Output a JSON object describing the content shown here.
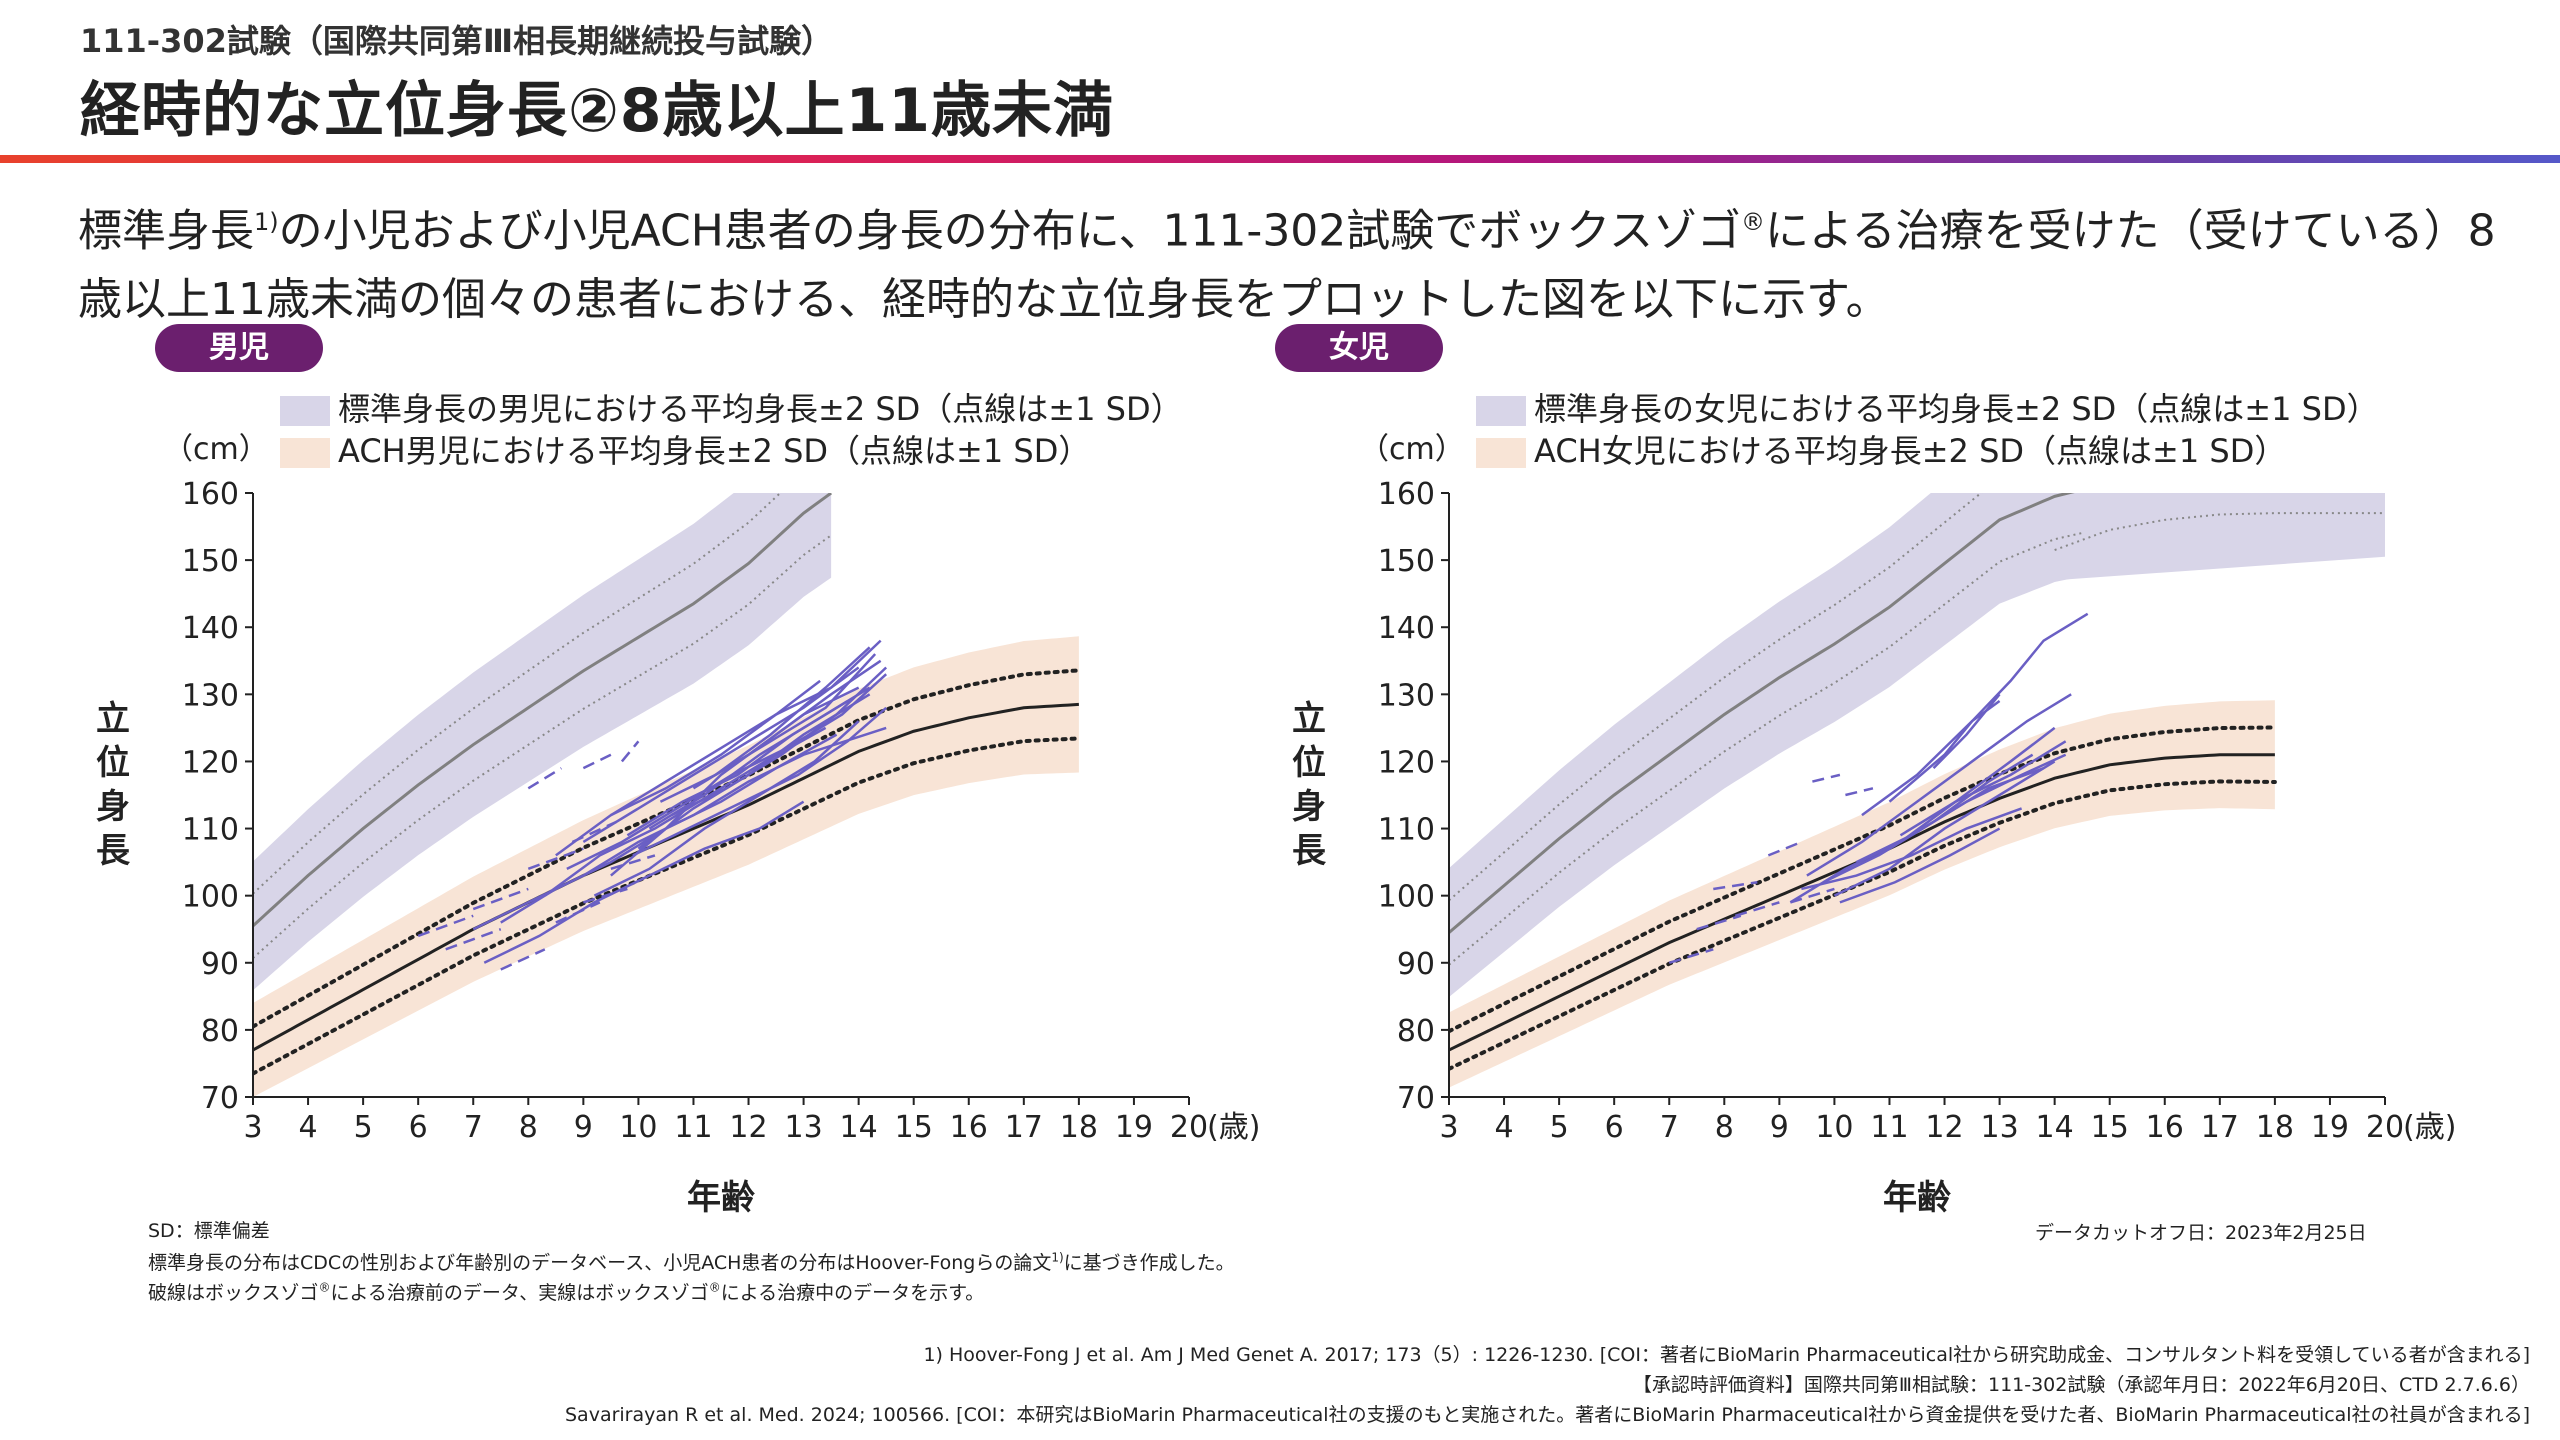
{
  "header": {
    "subtitle": "111-302試験（国際共同第Ⅲ相長期継続投与試験）",
    "title": "経時的な立位身長②8歳以上11歳未満"
  },
  "lead": {
    "part1": "標準身長",
    "ref": "1)",
    "part2": "の小児および小児ACH患者の身長の分布に、111-302試験でボックスゾゴ",
    "reg": "®",
    "part3": "による治療を受けた（受けている）8歳以上11歳未満の個々の患者における、経時的な立位身長をプロットした図を以下に示す。"
  },
  "colors": {
    "standard_band": "#d8d5e8",
    "ach_band": "#f8e4d6",
    "patient_line": "#6a5fc4",
    "standard_mean": "#808080",
    "ach_mean": "#222222",
    "badge": "#6b1f6e"
  },
  "charts": [
    {
      "badge": "男児",
      "legend_standard": "標準身長の男児における平均身長±2 SD（点線は±1 SD）",
      "legend_ach": "ACH男児における平均身長±2 SD（点線は±1 SD）"
    },
    {
      "badge": "女児",
      "legend_standard": "標準身長の女児における平均身長±2 SD（点線は±1 SD）",
      "legend_ach": "ACH女児における平均身長±2 SD（点線は±1 SD）"
    }
  ],
  "axes": {
    "y_unit": "（cm）",
    "y_label": "立位身長",
    "x_label": "年齢",
    "x_unit": "(歳)"
  },
  "chart_data": [
    {
      "type": "line",
      "panel": "男児",
      "xlim": [
        3,
        20
      ],
      "ylim": [
        70,
        160
      ],
      "x_ticks": [
        3,
        4,
        5,
        6,
        7,
        8,
        9,
        10,
        11,
        12,
        13,
        14,
        15,
        16,
        17,
        18,
        19,
        20
      ],
      "y_ticks": [
        70,
        80,
        90,
        100,
        110,
        120,
        130,
        140,
        150,
        160
      ],
      "standard_mean": [
        [
          3,
          95.5
        ],
        [
          4,
          103
        ],
        [
          5,
          110
        ],
        [
          6,
          116.5
        ],
        [
          7,
          122.5
        ],
        [
          8,
          128
        ],
        [
          9,
          133.5
        ],
        [
          10,
          138.5
        ],
        [
          11,
          143.5
        ],
        [
          12,
          149.5
        ],
        [
          13,
          157
        ],
        [
          13.5,
          160
        ]
      ],
      "standard_sd": 4.8,
      "ach_mean": [
        [
          3,
          77
        ],
        [
          4,
          81.5
        ],
        [
          5,
          86
        ],
        [
          6,
          90.5
        ],
        [
          7,
          95
        ],
        [
          8,
          99
        ],
        [
          9,
          103
        ],
        [
          10,
          106.5
        ],
        [
          11,
          110
        ],
        [
          12,
          113.5
        ],
        [
          13,
          117.5
        ],
        [
          14,
          121.5
        ],
        [
          15,
          124.5
        ],
        [
          16,
          126.5
        ],
        [
          17,
          128
        ],
        [
          18,
          128.5
        ]
      ],
      "ach_sd": 3.5,
      "patients_pre": [
        [
          [
            6,
            94
          ],
          [
            7,
            97
          ]
        ],
        [
          [
            7,
            98
          ],
          [
            8,
            101
          ]
        ],
        [
          [
            8,
            116
          ],
          [
            8.6,
            119
          ]
        ],
        [
          [
            9,
            119
          ],
          [
            9.5,
            121
          ]
        ],
        [
          [
            9.7,
            120
          ],
          [
            10,
            123
          ]
        ],
        [
          [
            6.5,
            92
          ],
          [
            7.5,
            95
          ]
        ],
        [
          [
            8,
            104
          ],
          [
            9,
            107
          ]
        ],
        [
          [
            8.5,
            96
          ],
          [
            9.3,
            99
          ]
        ],
        [
          [
            9,
            99
          ],
          [
            9.8,
            101
          ]
        ],
        [
          [
            7.5,
            89
          ],
          [
            8.3,
            92
          ]
        ],
        [
          [
            9.5,
            104
          ],
          [
            10.3,
            106
          ]
        ],
        [
          [
            8.8,
            108
          ],
          [
            9.6,
            111
          ]
        ]
      ],
      "patients_on": [
        [
          [
            9.5,
            103
          ],
          [
            10.5,
            110
          ],
          [
            11.5,
            118
          ],
          [
            12.5,
            124
          ],
          [
            13.5,
            130
          ],
          [
            14.4,
            135
          ]
        ],
        [
          [
            8.5,
            106
          ],
          [
            9.5,
            112
          ],
          [
            10.5,
            117
          ],
          [
            11.5,
            122
          ],
          [
            12.5,
            127
          ],
          [
            13.3,
            132
          ]
        ],
        [
          [
            9,
            108
          ],
          [
            10,
            113
          ],
          [
            11,
            118
          ],
          [
            12,
            123
          ],
          [
            13,
            128
          ],
          [
            14,
            134
          ]
        ],
        [
          [
            10,
            107
          ],
          [
            11,
            113
          ],
          [
            12,
            118
          ],
          [
            13,
            124
          ],
          [
            14.2,
            130
          ]
        ],
        [
          [
            7,
            95
          ],
          [
            8,
            99
          ],
          [
            9,
            103
          ],
          [
            10,
            108
          ],
          [
            11,
            112
          ],
          [
            12,
            117
          ],
          [
            13,
            121
          ],
          [
            14.5,
            125
          ]
        ],
        [
          [
            9.5,
            112
          ],
          [
            10.5,
            116
          ],
          [
            11.5,
            121
          ],
          [
            12.5,
            127
          ],
          [
            13.5,
            131
          ],
          [
            14.4,
            138
          ]
        ],
        [
          [
            8.7,
            104
          ],
          [
            9.7,
            108
          ],
          [
            10.7,
            113
          ],
          [
            11.7,
            118
          ],
          [
            12.7,
            122
          ],
          [
            13.7,
            127
          ],
          [
            14.5,
            133
          ]
        ],
        [
          [
            10.2,
            110
          ],
          [
            11.2,
            115
          ],
          [
            12.2,
            121
          ],
          [
            13.2,
            126
          ],
          [
            14.2,
            131
          ]
        ],
        [
          [
            9.2,
            100
          ],
          [
            10.2,
            104
          ],
          [
            11.2,
            110
          ],
          [
            12.2,
            115
          ],
          [
            13.2,
            120
          ],
          [
            14,
            126
          ]
        ],
        [
          [
            10.6,
            112
          ],
          [
            11.6,
            116
          ],
          [
            12.6,
            121
          ],
          [
            13.6,
            127
          ],
          [
            14.5,
            134
          ]
        ],
        [
          [
            7.5,
            96
          ],
          [
            8.5,
            101
          ],
          [
            9.5,
            105
          ],
          [
            10.5,
            110
          ],
          [
            11.5,
            114
          ],
          [
            12.5,
            119
          ],
          [
            13.6,
            124
          ]
        ],
        [
          [
            11,
            116
          ],
          [
            12,
            121
          ],
          [
            13,
            127
          ],
          [
            14,
            131
          ]
        ],
        [
          [
            9.8,
            109
          ],
          [
            10.8,
            114
          ],
          [
            11.8,
            118
          ],
          [
            12.8,
            124
          ],
          [
            13.8,
            129
          ]
        ],
        [
          [
            8.3,
            100
          ],
          [
            9.3,
            106
          ],
          [
            10.3,
            110
          ],
          [
            11.3,
            115
          ],
          [
            12.3,
            120
          ],
          [
            13.4,
            125
          ]
        ],
        [
          [
            10.4,
            114
          ],
          [
            11.4,
            118
          ],
          [
            12.4,
            123
          ],
          [
            13.4,
            128
          ],
          [
            14.3,
            136
          ]
        ],
        [
          [
            9.9,
            106
          ],
          [
            10.9,
            110
          ],
          [
            11.9,
            114
          ],
          [
            12.9,
            118
          ],
          [
            13.8,
            123
          ],
          [
            14.5,
            128
          ]
        ],
        [
          [
            7.2,
            90
          ],
          [
            8.2,
            94
          ],
          [
            9.2,
            99
          ],
          [
            10.2,
            103
          ],
          [
            11.2,
            107
          ],
          [
            12.2,
            110
          ],
          [
            13,
            114
          ]
        ],
        [
          [
            11.4,
            118
          ],
          [
            12.4,
            124
          ],
          [
            13.4,
            131
          ],
          [
            14.2,
            137
          ]
        ]
      ]
    },
    {
      "type": "line",
      "panel": "女児",
      "xlim": [
        3,
        20
      ],
      "ylim": [
        70,
        160
      ],
      "x_ticks": [
        3,
        4,
        5,
        6,
        7,
        8,
        9,
        10,
        11,
        12,
        13,
        14,
        15,
        16,
        17,
        18,
        19,
        20
      ],
      "y_ticks": [
        70,
        80,
        90,
        100,
        110,
        120,
        130,
        140,
        150,
        160
      ],
      "standard_mean": [
        [
          3,
          94.5
        ],
        [
          4,
          101.5
        ],
        [
          5,
          108.5
        ],
        [
          6,
          115
        ],
        [
          7,
          121
        ],
        [
          8,
          127
        ],
        [
          9,
          132.5
        ],
        [
          10,
          137.5
        ],
        [
          11,
          143
        ],
        [
          12,
          149.5
        ],
        [
          13,
          156
        ],
        [
          14,
          159.5
        ],
        [
          14.5,
          160.5
        ]
      ],
      "standard_sd": 4.8,
      "standard_mean_dotted_lower_ext": [
        [
          14,
          151.5
        ],
        [
          15,
          154.5
        ],
        [
          16,
          156
        ],
        [
          17,
          156.8
        ],
        [
          18,
          157
        ],
        [
          19,
          157
        ],
        [
          20,
          157
        ]
      ],
      "ach_mean": [
        [
          3,
          77
        ],
        [
          4,
          81
        ],
        [
          5,
          85
        ],
        [
          6,
          89
        ],
        [
          7,
          93
        ],
        [
          8,
          96.5
        ],
        [
          9,
          100
        ],
        [
          10,
          103.5
        ],
        [
          11,
          107
        ],
        [
          12,
          111
        ],
        [
          13,
          114.5
        ],
        [
          14,
          117.5
        ],
        [
          15,
          119.5
        ],
        [
          16,
          120.5
        ],
        [
          17,
          121
        ],
        [
          18,
          121
        ]
      ],
      "ach_sd": 2.8,
      "patients_pre": [
        [
          [
            7,
            90
          ],
          [
            7.8,
            92
          ]
        ],
        [
          [
            7.5,
            95
          ],
          [
            8.3,
            97
          ]
        ],
        [
          [
            8.8,
            106
          ],
          [
            9.4,
            108
          ]
        ],
        [
          [
            9.6,
            117
          ],
          [
            10.1,
            118
          ]
        ],
        [
          [
            10.2,
            115
          ],
          [
            10.7,
            116
          ]
        ],
        [
          [
            8.2,
            97
          ],
          [
            9,
            99
          ]
        ],
        [
          [
            9.2,
            99
          ],
          [
            10,
            101
          ]
        ],
        [
          [
            7.8,
            101
          ],
          [
            8.6,
            102
          ]
        ]
      ],
      "patients_on": [
        [
          [
            10.5,
            112
          ],
          [
            11.5,
            118
          ],
          [
            12.5,
            126
          ],
          [
            13.2,
            132
          ],
          [
            13.8,
            138
          ],
          [
            14.6,
            142
          ]
        ],
        [
          [
            11,
            114
          ],
          [
            12,
            121
          ],
          [
            12.5,
            126
          ],
          [
            13,
            129
          ]
        ],
        [
          [
            9.5,
            103
          ],
          [
            10.5,
            108
          ],
          [
            11.5,
            114
          ],
          [
            12.5,
            120
          ],
          [
            13.5,
            126
          ],
          [
            14.3,
            130
          ]
        ],
        [
          [
            10,
            100
          ],
          [
            11,
            104
          ],
          [
            12,
            110
          ],
          [
            13,
            115
          ],
          [
            14,
            120
          ]
        ],
        [
          [
            9.2,
            99
          ],
          [
            10.2,
            104
          ],
          [
            11.2,
            108
          ],
          [
            12.2,
            114
          ],
          [
            13.2,
            118
          ],
          [
            14.2,
            123
          ]
        ],
        [
          [
            10.4,
            105
          ],
          [
            11.4,
            109
          ],
          [
            12.4,
            114
          ],
          [
            13.4,
            118
          ],
          [
            14.2,
            121
          ]
        ],
        [
          [
            9.8,
            102
          ],
          [
            10.8,
            106
          ],
          [
            11.8,
            111
          ],
          [
            12.8,
            116
          ],
          [
            13.8,
            119
          ]
        ],
        [
          [
            10.8,
            106
          ],
          [
            11.8,
            111
          ],
          [
            12.8,
            117
          ],
          [
            13.6,
            121
          ]
        ],
        [
          [
            11.2,
            109
          ],
          [
            12.2,
            114
          ],
          [
            13.2,
            120
          ],
          [
            14,
            125
          ]
        ],
        [
          [
            9.4,
            101
          ],
          [
            10.4,
            103
          ],
          [
            11.4,
            106
          ],
          [
            12.4,
            110
          ],
          [
            13.4,
            113
          ]
        ],
        [
          [
            10.1,
            99
          ],
          [
            11.1,
            102
          ],
          [
            12.1,
            106
          ],
          [
            13,
            110
          ]
        ],
        [
          [
            11.8,
            119
          ],
          [
            12.4,
            124
          ],
          [
            13,
            130
          ]
        ]
      ]
    }
  ],
  "footnotes": {
    "sd": "SD：標準偏差",
    "line2": "標準身長の分布はCDCの性別および年齢別のデータベース、小児ACH患者の分布はHoover-Fongらの論文",
    "line2_ref": "1)",
    "line2_end": "に基づき作成した。",
    "line3a": "破線はボックスゾゴ",
    "line3_reg": "®",
    "line3b": "による治療前のデータ、実線はボックスゾゴ",
    "line3c": "による治療中のデータを示す。",
    "cutoff": "データカットオフ日：2023年2月25日",
    "ref1": "1) Hoover-Fong J et al. Am J Med Genet A. 2017; 173（5）: 1226-1230. [COI：著者にBioMarin Pharmaceutical社から研究助成金、コンサルタント料を受領している者が含まれる]",
    "ref2": "【承認時評価資料】国際共同第Ⅲ相試験：111-302試験（承認年月日：2022年6月20日、CTD 2.7.6.6）",
    "ref3": "Savarirayan R et al. Med. 2024; 100566. [COI：本研究はBioMarin Pharmaceutical社の支援のもと実施された。著者にBioMarin Pharmaceutical社から資金提供を受けた者、BioMarin Pharmaceutical社の社員が含まれる]"
  }
}
